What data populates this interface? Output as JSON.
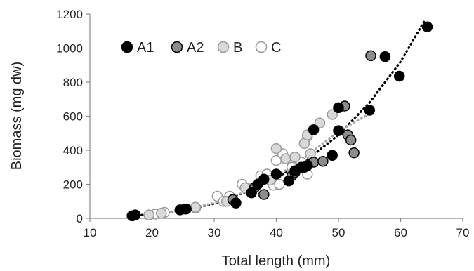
{
  "chart_data": {
    "type": "scatter",
    "title": "",
    "xlabel": "Total length (mm)",
    "ylabel": "Biomass (mg dw)",
    "xlim": [
      10,
      70
    ],
    "ylim": [
      0,
      1200
    ],
    "x_ticks": [
      "10",
      "20",
      "30",
      "40",
      "50",
      "60",
      "70"
    ],
    "y_ticks": [
      "0",
      "200",
      "400",
      "600",
      "800",
      "1000",
      "1200"
    ],
    "grid": false,
    "legend_position": "top-left",
    "legend_labels": [
      "A1",
      "A2",
      "B",
      "C"
    ],
    "series": [
      {
        "name": "A1",
        "marker": "filled",
        "fill": "#000000",
        "stroke": "#000000",
        "points": [
          [
            16.8,
            15
          ],
          [
            17.3,
            20
          ],
          [
            24.5,
            50
          ],
          [
            25.5,
            55
          ],
          [
            33.5,
            90
          ],
          [
            36,
            150
          ],
          [
            37,
            200
          ],
          [
            38,
            230
          ],
          [
            40,
            260
          ],
          [
            42,
            220
          ],
          [
            43,
            280
          ],
          [
            44,
            300
          ],
          [
            45,
            310
          ],
          [
            46,
            520
          ],
          [
            49,
            370
          ],
          [
            50,
            515
          ],
          [
            50,
            650
          ],
          [
            55,
            635
          ],
          [
            57.5,
            950
          ],
          [
            59.8,
            835
          ],
          [
            64.3,
            1125
          ]
        ]
      },
      {
        "name": "A2",
        "marker": "filled",
        "fill": "#8c8c8c",
        "stroke": "#000000",
        "points": [
          [
            25.3,
            55
          ],
          [
            33,
            110
          ],
          [
            36.5,
            180
          ],
          [
            38,
            140
          ],
          [
            42.5,
            250
          ],
          [
            43,
            270
          ],
          [
            44.5,
            300
          ],
          [
            46,
            330
          ],
          [
            47.5,
            335
          ],
          [
            51,
            660
          ],
          [
            51.5,
            490
          ],
          [
            52,
            460
          ],
          [
            52.5,
            385
          ],
          [
            55.2,
            955
          ]
        ]
      },
      {
        "name": "B",
        "marker": "filled",
        "fill": "#d9d9d9",
        "stroke": "#9a9a9a",
        "points": [
          [
            19.5,
            20
          ],
          [
            21.5,
            30
          ],
          [
            27,
            65
          ],
          [
            32,
            100
          ],
          [
            35,
            180
          ],
          [
            37,
            200
          ],
          [
            39,
            225
          ],
          [
            40,
            410
          ],
          [
            41.5,
            350
          ],
          [
            43,
            360
          ],
          [
            44.5,
            440
          ],
          [
            45,
            490
          ],
          [
            45.5,
            380
          ],
          [
            47,
            560
          ],
          [
            49,
            610
          ]
        ]
      },
      {
        "name": "C",
        "marker": "open",
        "fill": "#ffffff",
        "stroke": "#9a9a9a",
        "points": [
          [
            20.5,
            25
          ],
          [
            22,
            35
          ],
          [
            27,
            60
          ],
          [
            30.5,
            130
          ],
          [
            31.5,
            100
          ],
          [
            32.5,
            130
          ],
          [
            34.5,
            200
          ],
          [
            36,
            175
          ],
          [
            37.5,
            250
          ],
          [
            38.5,
            260
          ],
          [
            39.5,
            195
          ],
          [
            40,
            340
          ],
          [
            40.5,
            200
          ],
          [
            41,
            380
          ],
          [
            42.5,
            300
          ],
          [
            44,
            330
          ],
          [
            45,
            260
          ],
          [
            45,
            480
          ]
        ]
      }
    ],
    "trendlines": [
      {
        "series": "A1",
        "color": "#000000",
        "points": [
          [
            17,
            15
          ],
          [
            20,
            25
          ],
          [
            25,
            47
          ],
          [
            30,
            86
          ],
          [
            35,
            153
          ],
          [
            40,
            237
          ],
          [
            45,
            345
          ],
          [
            50,
            490
          ],
          [
            55,
            680
          ],
          [
            60,
            920
          ],
          [
            64,
            1170
          ]
        ]
      },
      {
        "series": "B",
        "color": "#a6a6a6",
        "points": [
          [
            19,
            18
          ],
          [
            25,
            48
          ],
          [
            30,
            90
          ],
          [
            35,
            155
          ],
          [
            40,
            245
          ],
          [
            45,
            370
          ],
          [
            50,
            510
          ],
          [
            55,
            615
          ]
        ]
      }
    ]
  }
}
